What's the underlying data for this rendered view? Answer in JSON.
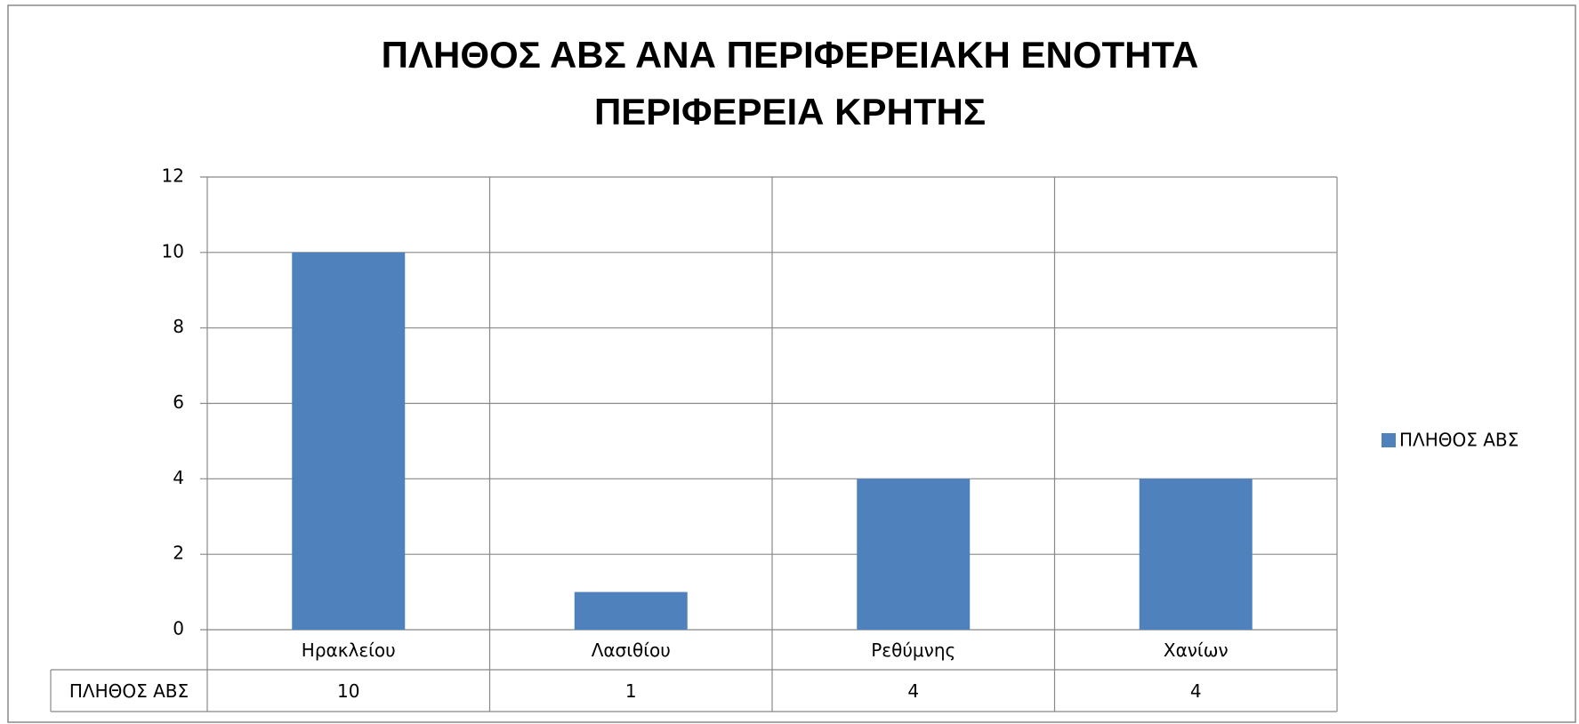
{
  "chart_data": {
    "type": "bar",
    "title": "ΠΛΗΘΟΣ ΑΒΣ ΑΝΑ ΠΕΡΙΦΕΡΕΙΑΚΗ ΕΝΟΤΗΤΑ",
    "subtitle": "ΠΕΡΙΦΕΡΕΙΑ ΚΡΗΤΗΣ",
    "categories": [
      "Ηρακλείου",
      "Λασιθίου",
      "Ρεθύμνης",
      "Χανίων"
    ],
    "series": [
      {
        "name": "ΠΛΗΘΟΣ ΑΒΣ",
        "color": "#4f81bd",
        "values": [
          10,
          1,
          4,
          4
        ]
      }
    ],
    "ylim": [
      0,
      12
    ],
    "yticks": [
      0,
      2,
      4,
      6,
      8,
      10,
      12
    ],
    "grid": true,
    "legend": "right",
    "data_table": true
  }
}
